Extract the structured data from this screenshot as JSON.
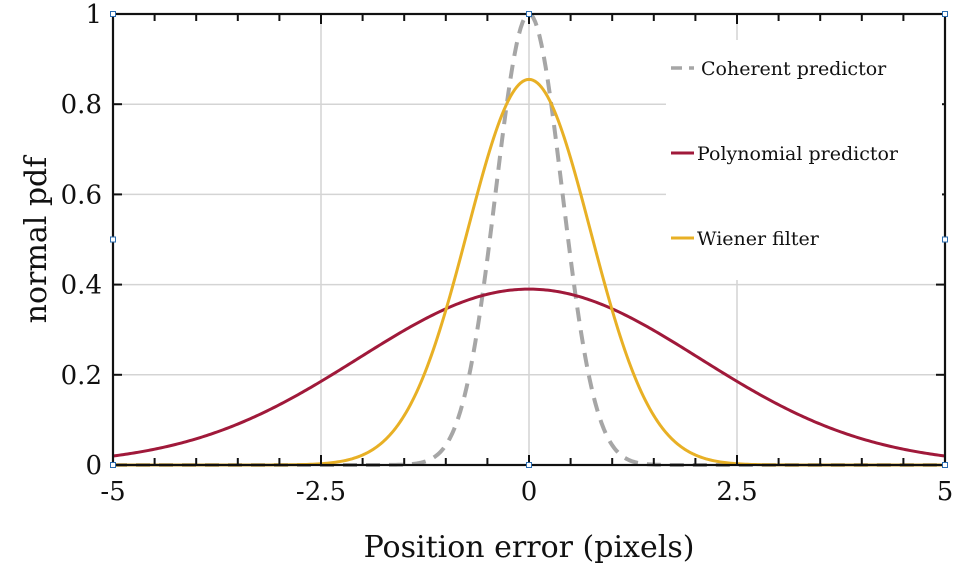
{
  "chart_data": {
    "type": "line",
    "xlabel": "Position error (pixels)",
    "ylabel": "normal pdf",
    "xlim": [
      -5,
      5
    ],
    "ylim": [
      0,
      1
    ],
    "x_ticks": [
      -5,
      -2.5,
      0,
      2.5,
      5
    ],
    "x_tick_labels": [
      "-5",
      "-2.5",
      "0",
      "2.5",
      "5"
    ],
    "y_ticks": [
      0,
      0.2,
      0.4,
      0.6,
      0.8,
      1
    ],
    "y_tick_labels": [
      "0",
      "0.2",
      "0.4",
      "0.6",
      "0.8",
      "1"
    ],
    "grid": true,
    "legend_position": "top-right",
    "series": [
      {
        "name": "Coherent predictor",
        "color": "#a6a6a6",
        "style": "dashed",
        "distribution": "normal",
        "mean": 0,
        "std": 0.4,
        "peak_value": 1.0,
        "x": [
          -5,
          -4,
          -3,
          -2.5,
          -2,
          -1.5,
          -1.2,
          -1,
          -0.8,
          -0.6,
          -0.4,
          -0.2,
          0,
          0.2,
          0.4,
          0.6,
          0.8,
          1,
          1.2,
          1.5,
          2,
          2.5,
          3,
          4,
          5
        ],
        "y": [
          0,
          0,
          0,
          0,
          0.0,
          0.01,
          0.05,
          0.1,
          0.23,
          0.45,
          0.61,
          0.88,
          1.0,
          0.88,
          0.61,
          0.45,
          0.23,
          0.1,
          0.05,
          0.01,
          0.0,
          0,
          0,
          0,
          0
        ]
      },
      {
        "name": "Polynomial predictor",
        "color": "#a0193a",
        "style": "solid",
        "distribution": "normal",
        "mean": 0,
        "std": 2.05,
        "peak_value": 0.39,
        "x": [
          -5,
          -4,
          -3,
          -2.5,
          -2,
          -1,
          0,
          1,
          2,
          2.5,
          3,
          4,
          5
        ],
        "y": [
          0.02,
          0.06,
          0.13,
          0.18,
          0.24,
          0.34,
          0.39,
          0.34,
          0.24,
          0.18,
          0.13,
          0.06,
          0.02
        ]
      },
      {
        "name": "Wiener filter",
        "color": "#e8b025",
        "style": "solid",
        "distribution": "normal",
        "mean": 0,
        "std": 0.74,
        "peak_value": 0.855,
        "x": [
          -5,
          -4,
          -3,
          -2.5,
          -2,
          -1.5,
          -1,
          -0.5,
          0,
          0.5,
          1,
          1.5,
          2,
          2.5,
          3,
          4,
          5
        ],
        "y": [
          0,
          0,
          0.0,
          0.01,
          0.06,
          0.22,
          0.47,
          0.68,
          0.855,
          0.68,
          0.47,
          0.22,
          0.06,
          0.01,
          0.0,
          0,
          0
        ]
      }
    ]
  }
}
